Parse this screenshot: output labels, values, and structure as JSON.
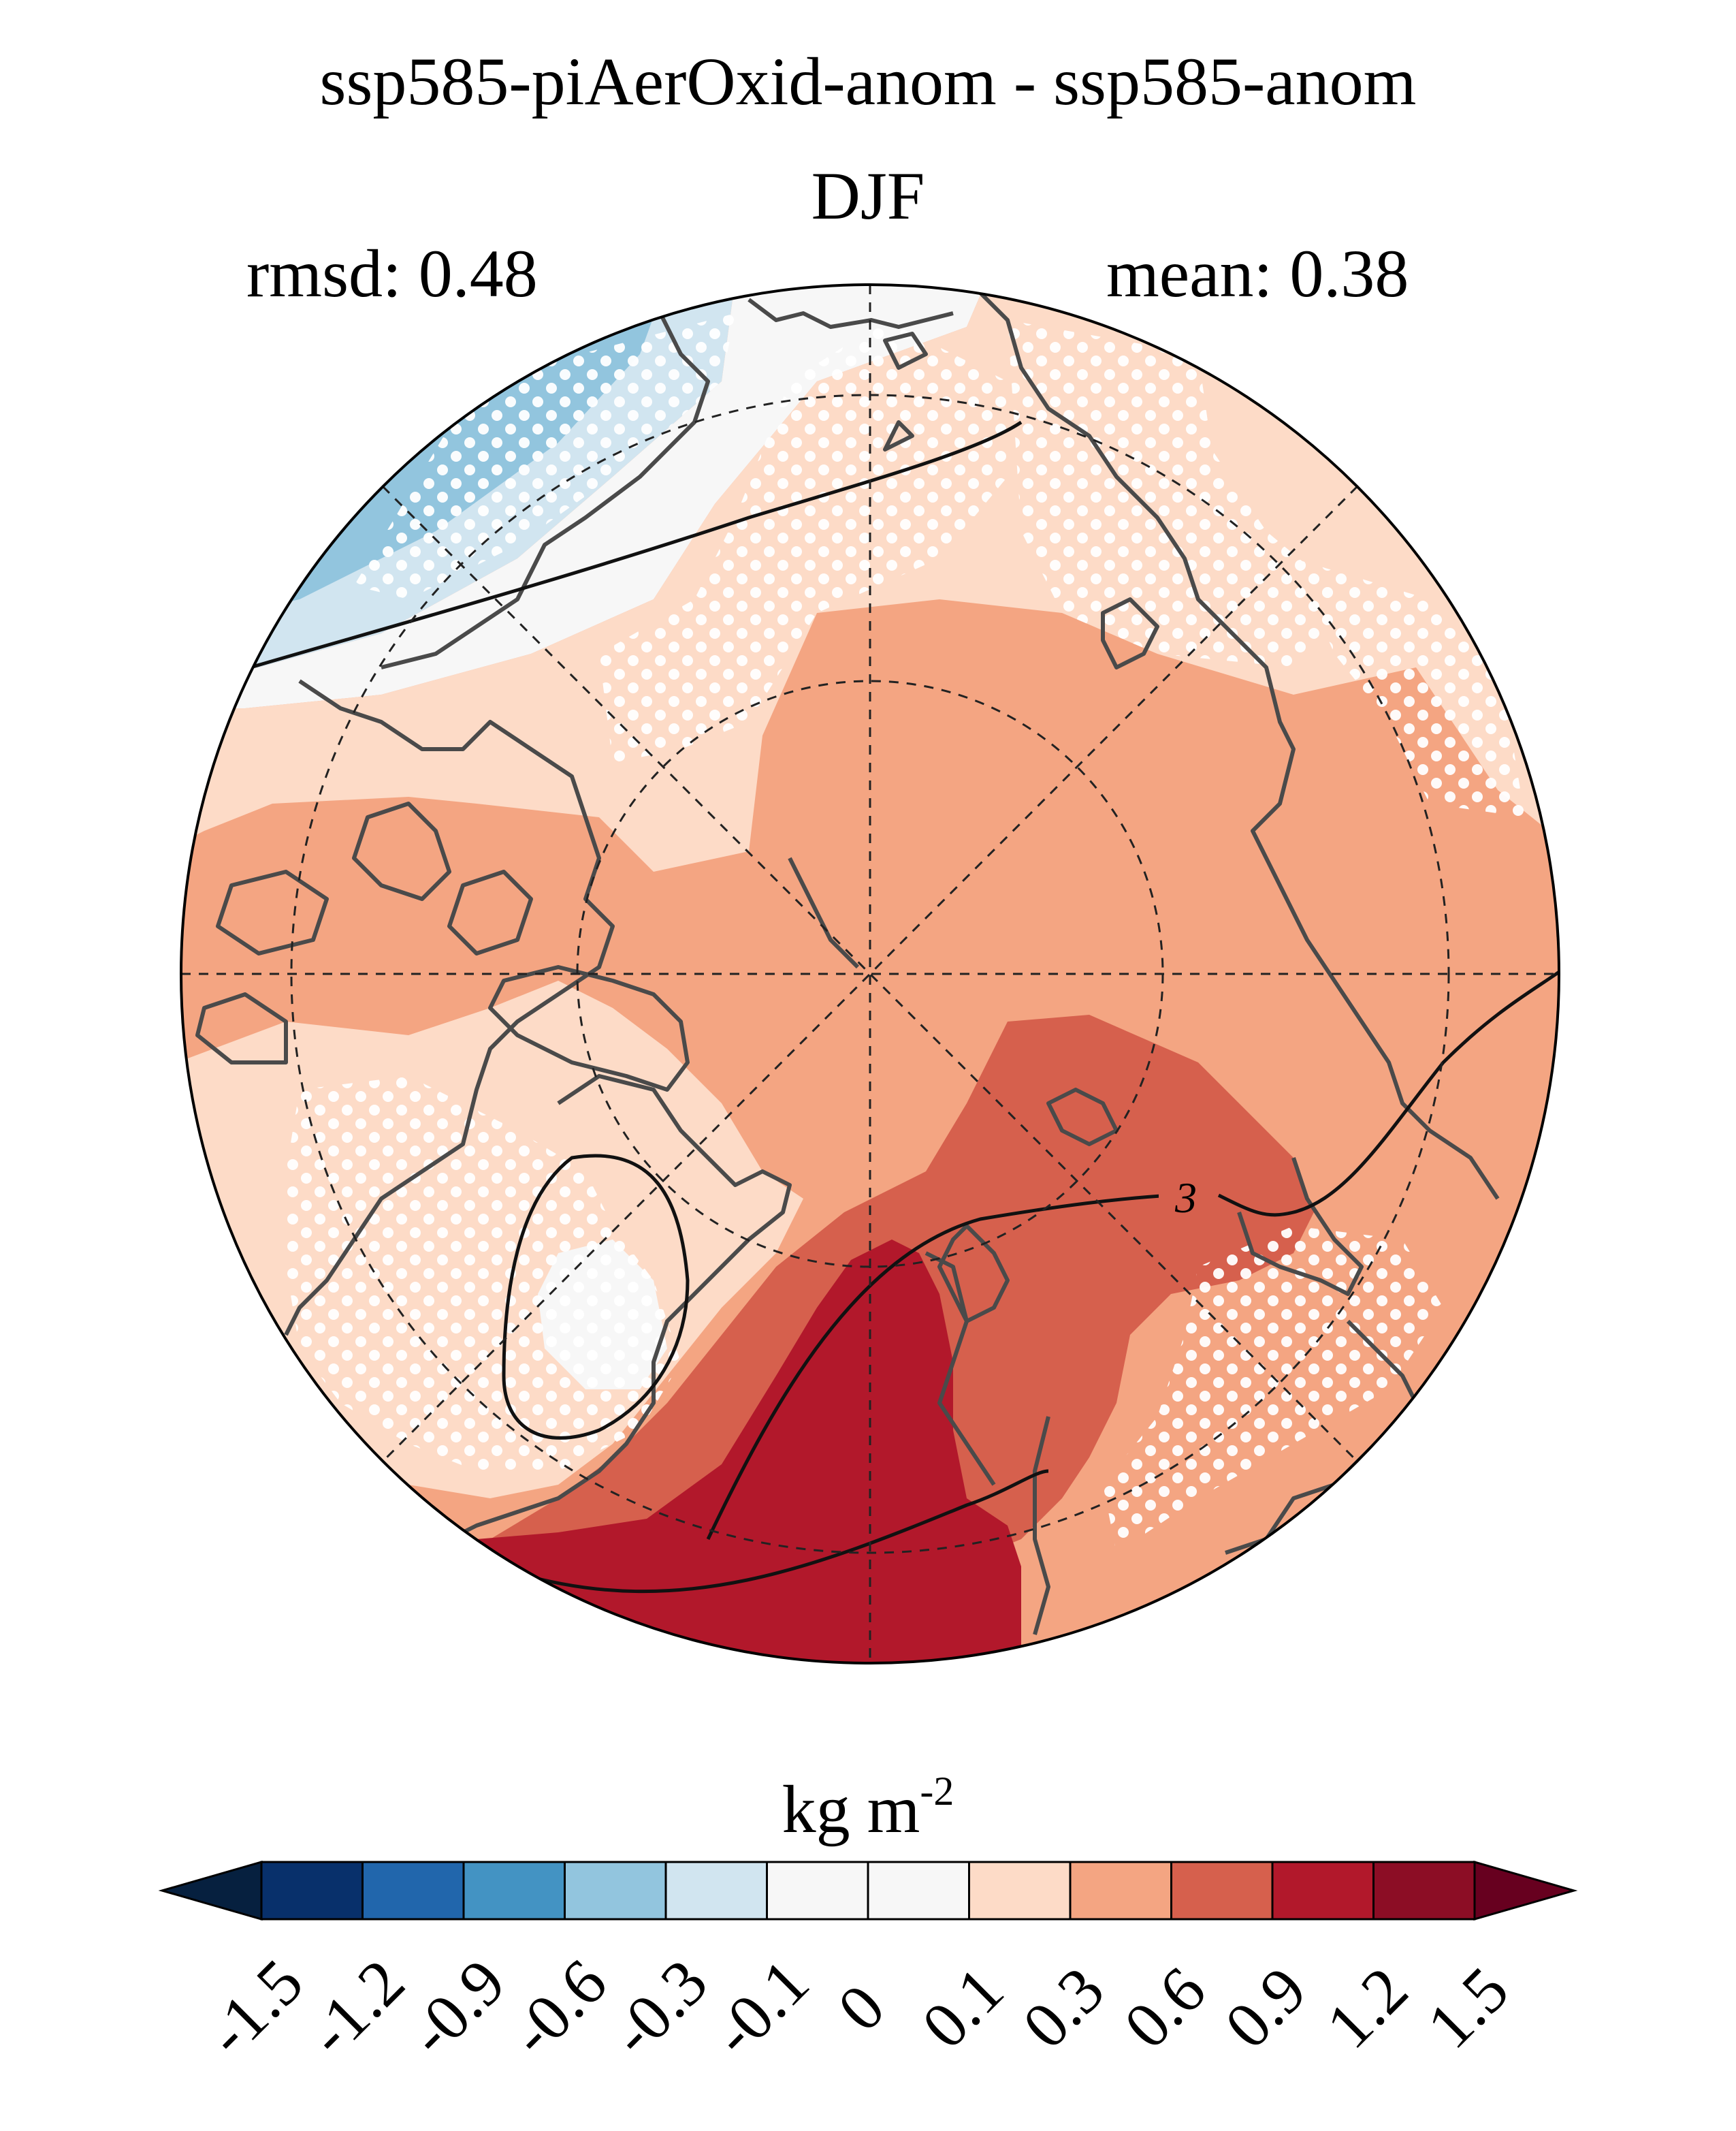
{
  "figure": {
    "title_line1": "ssp585-piAerOxid-anom - ssp585-anom",
    "title_line2": "DJF",
    "rmsd_label": "rmsd: 0.48",
    "mean_label": "mean: 0.38",
    "projection": "north polar stereographic",
    "contour_label": "3"
  },
  "colorbar": {
    "units_base": "kg m",
    "units_exponent": "-2",
    "levels": [
      "-1.5",
      "-1.2",
      "-0.9",
      "-0.6",
      "-0.3",
      "-0.1",
      "0",
      "0.1",
      "0.3",
      "0.6",
      "0.9",
      "1.2",
      "1.5"
    ],
    "colors": [
      "#08306b",
      "#2166ac",
      "#4393c3",
      "#92c5de",
      "#d1e5f0",
      "#f7f7f7",
      "#f7f7f7",
      "#fddbc7",
      "#f4a582",
      "#d6604d",
      "#b2182b",
      "#8c0d25"
    ],
    "extend_low_color": "#06203f",
    "extend_high_color": "#67001f"
  }
}
